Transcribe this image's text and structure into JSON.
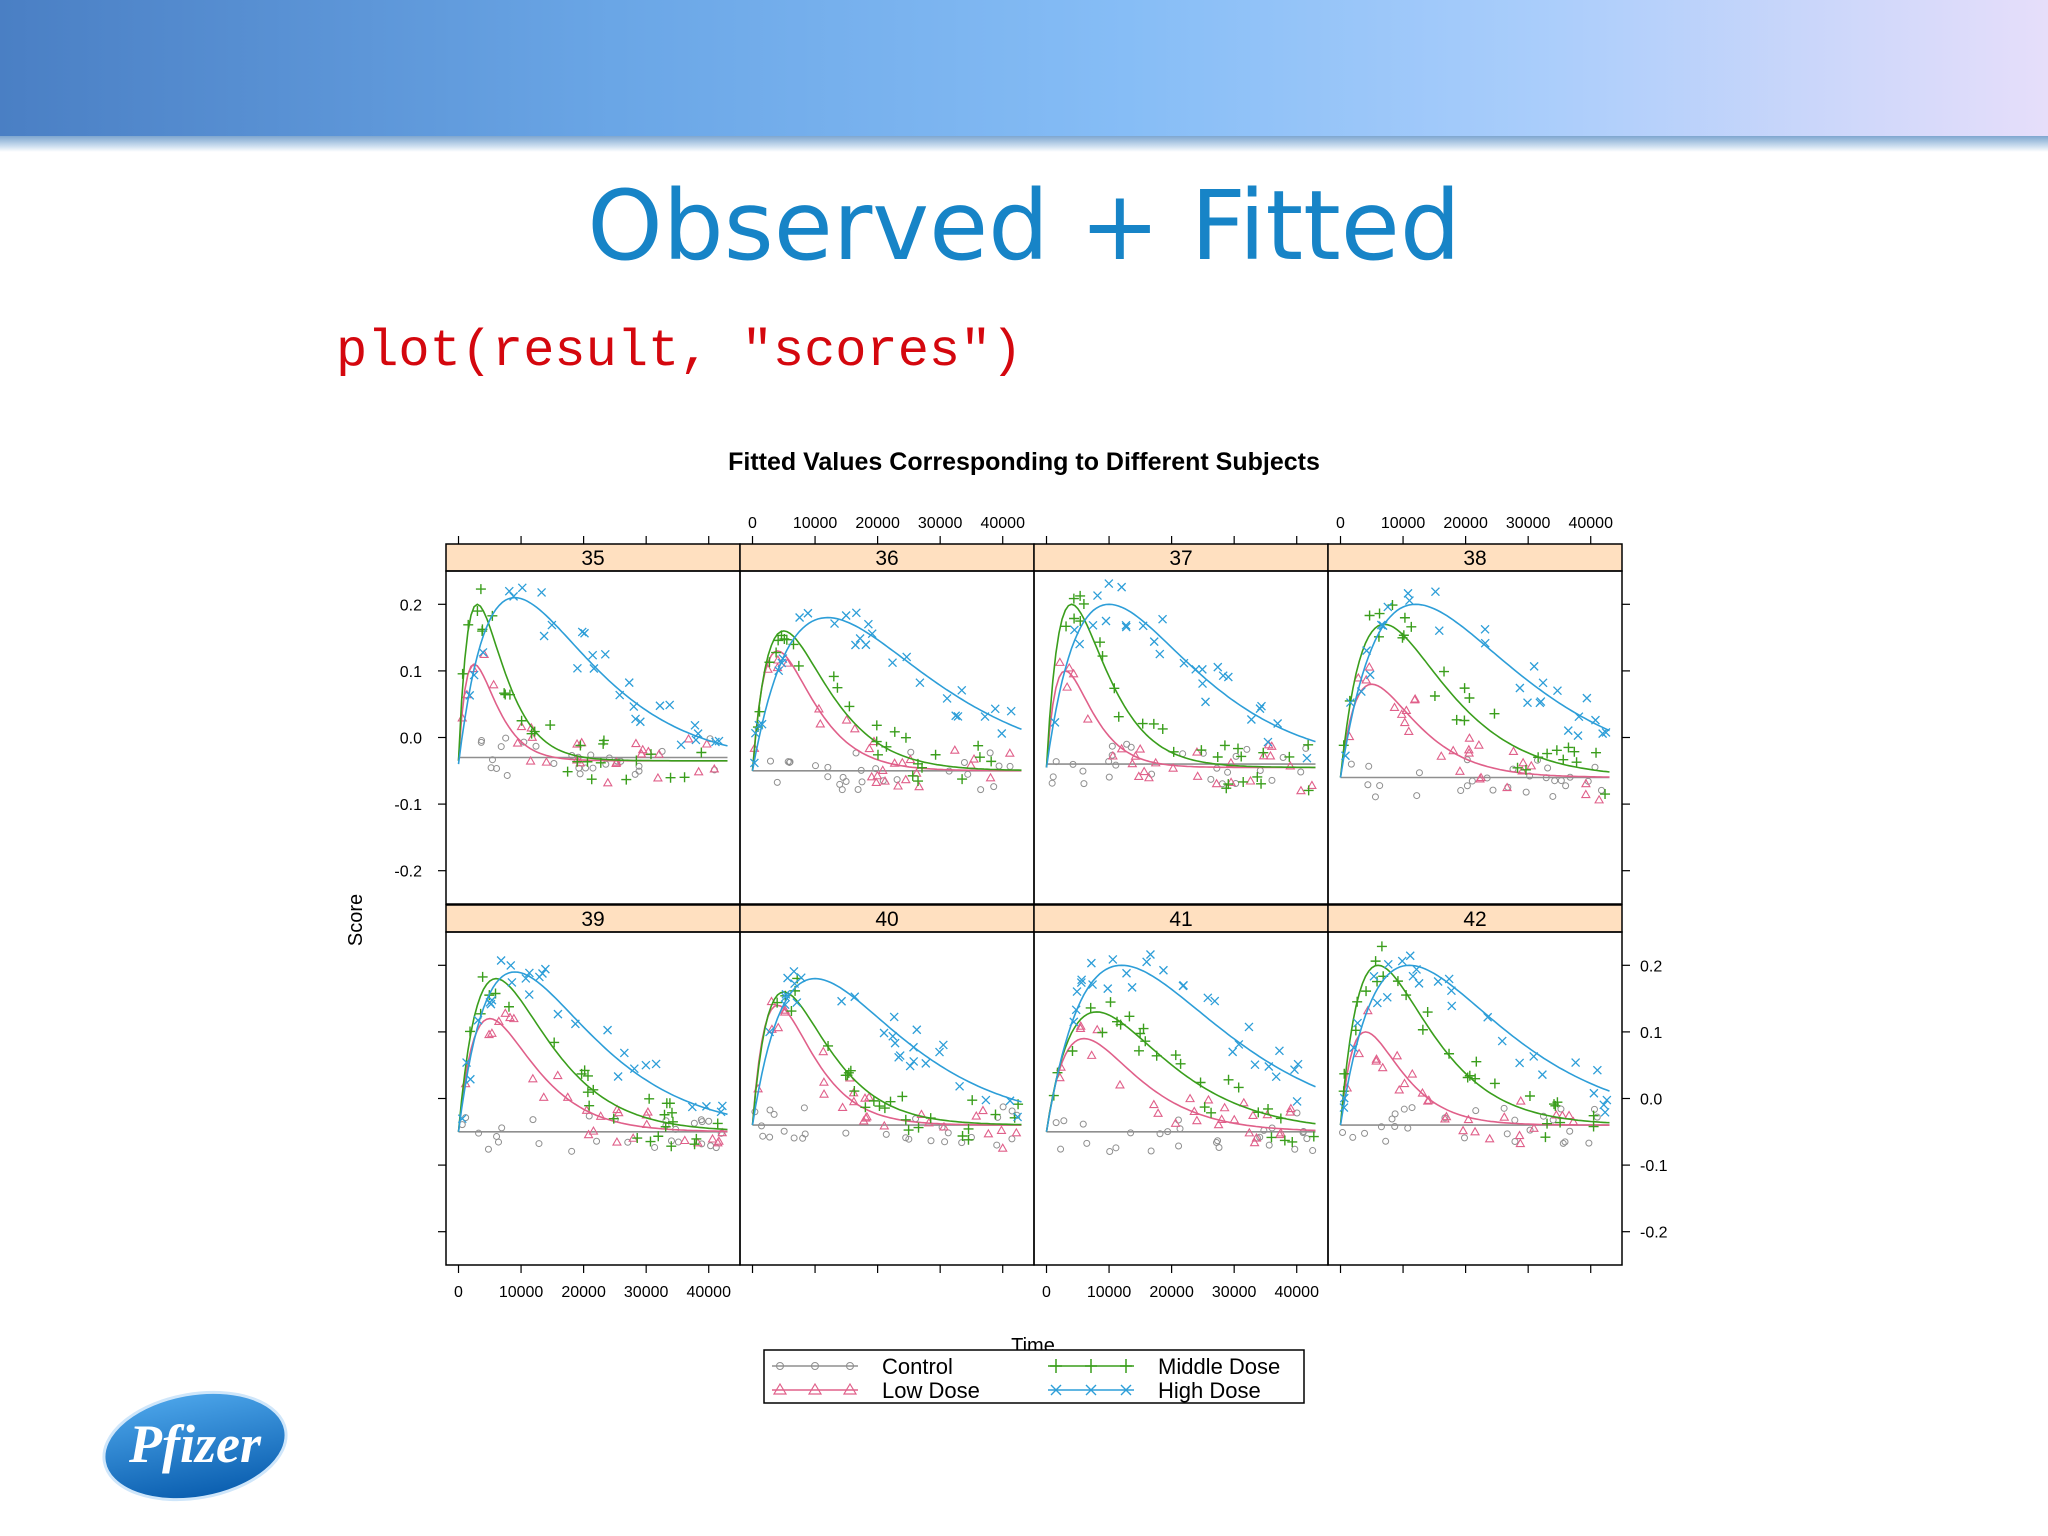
{
  "slide": {
    "title": "Observed + Fitted",
    "code": "plot(result, \"scores\")",
    "logo_text": "Pfizer"
  },
  "chart_data": {
    "type": "scatter",
    "title": "Fitted Values Corresponding to Different Subjects",
    "xlabel": "Time",
    "ylabel": "Score",
    "xlim": [
      -2000,
      45000
    ],
    "ylim": [
      -0.25,
      0.25
    ],
    "x_ticks": [
      0,
      10000,
      20000,
      30000,
      40000
    ],
    "x_tick_labels": [
      "0",
      "10000",
      "20000",
      "30000",
      "40000"
    ],
    "y_ticks": [
      -0.2,
      -0.1,
      0.0,
      0.1,
      0.2
    ],
    "y_tick_labels": [
      "-0.2",
      "-0.1",
      "0.0",
      "0.1",
      "0.2"
    ],
    "layout": "4 columns x 2 rows",
    "panels": [
      "35",
      "36",
      "37",
      "38",
      "39",
      "40",
      "41",
      "42"
    ],
    "legend": {
      "placement": "bottom",
      "entries": [
        {
          "name": "Control",
          "color": "#8f8f8f",
          "marker": "circle"
        },
        {
          "name": "Middle Dose",
          "color": "#3a9e1c",
          "marker": "plus"
        },
        {
          "name": "Low Dose",
          "color": "#e0608a",
          "marker": "triangle"
        },
        {
          "name": "High Dose",
          "color": "#2d9ed8",
          "marker": "x"
        }
      ]
    },
    "series_styles": {
      "Control": {
        "color": "#8f8f8f",
        "marker": "circle"
      },
      "Low Dose": {
        "color": "#e0608a",
        "marker": "triangle"
      },
      "Middle Dose": {
        "color": "#3a9e1c",
        "marker": "plus"
      },
      "High Dose": {
        "color": "#2d9ed8",
        "marker": "x"
      }
    },
    "fitted_curves": {
      "35": {
        "Control": {
          "base": -0.03,
          "peak": 0.0,
          "tmax": 1000
        },
        "Low Dose": {
          "base": -0.035,
          "peak": 0.11,
          "tmax": 2500
        },
        "Middle Dose": {
          "base": -0.035,
          "peak": 0.2,
          "tmax": 3000
        },
        "High Dose": {
          "base": -0.04,
          "peak": 0.21,
          "tmax": 9000
        }
      },
      "36": {
        "Control": {
          "base": -0.05,
          "peak": 0.0,
          "tmax": 1000
        },
        "Low Dose": {
          "base": -0.05,
          "peak": 0.13,
          "tmax": 4000
        },
        "Middle Dose": {
          "base": -0.05,
          "peak": 0.16,
          "tmax": 5000
        },
        "High Dose": {
          "base": -0.05,
          "peak": 0.18,
          "tmax": 12000
        }
      },
      "37": {
        "Control": {
          "base": -0.04,
          "peak": 0.0,
          "tmax": 1000
        },
        "Low Dose": {
          "base": -0.045,
          "peak": 0.1,
          "tmax": 3000
        },
        "Middle Dose": {
          "base": -0.045,
          "peak": 0.2,
          "tmax": 4000
        },
        "High Dose": {
          "base": -0.045,
          "peak": 0.2,
          "tmax": 10000
        }
      },
      "38": {
        "Control": {
          "base": -0.06,
          "peak": 0.0,
          "tmax": 1000
        },
        "Low Dose": {
          "base": -0.06,
          "peak": 0.08,
          "tmax": 5000
        },
        "Middle Dose": {
          "base": -0.06,
          "peak": 0.17,
          "tmax": 7000
        },
        "High Dose": {
          "base": -0.06,
          "peak": 0.2,
          "tmax": 12000
        }
      },
      "39": {
        "Control": {
          "base": -0.05,
          "peak": 0.0,
          "tmax": 1000
        },
        "Low Dose": {
          "base": -0.05,
          "peak": 0.12,
          "tmax": 5000
        },
        "Middle Dose": {
          "base": -0.05,
          "peak": 0.18,
          "tmax": 6000
        },
        "High Dose": {
          "base": -0.05,
          "peak": 0.19,
          "tmax": 9000
        }
      },
      "40": {
        "Control": {
          "base": -0.04,
          "peak": 0.0,
          "tmax": 1000
        },
        "Low Dose": {
          "base": -0.04,
          "peak": 0.14,
          "tmax": 4000
        },
        "Middle Dose": {
          "base": -0.04,
          "peak": 0.16,
          "tmax": 5000
        },
        "High Dose": {
          "base": -0.04,
          "peak": 0.18,
          "tmax": 10000
        }
      },
      "41": {
        "Control": {
          "base": -0.05,
          "peak": 0.0,
          "tmax": 1000
        },
        "Low Dose": {
          "base": -0.05,
          "peak": 0.09,
          "tmax": 6000
        },
        "Middle Dose": {
          "base": -0.05,
          "peak": 0.13,
          "tmax": 8000
        },
        "High Dose": {
          "base": -0.05,
          "peak": 0.2,
          "tmax": 12000
        }
      },
      "42": {
        "Control": {
          "base": -0.04,
          "peak": 0.0,
          "tmax": 1000
        },
        "Low Dose": {
          "base": -0.04,
          "peak": 0.1,
          "tmax": 4000
        },
        "Middle Dose": {
          "base": -0.04,
          "peak": 0.2,
          "tmax": 6000
        },
        "High Dose": {
          "base": -0.04,
          "peak": 0.2,
          "tmax": 11000
        }
      }
    },
    "observation_spread": {
      "Control": 0.03,
      "Low Dose": 0.035,
      "Middle Dose": 0.035,
      "High Dose": 0.035
    },
    "observation_times": [
      500,
      3000,
      6000,
      9000,
      12000,
      16000,
      20000,
      25000,
      30000,
      35000,
      40000,
      43000
    ],
    "grid": false
  }
}
